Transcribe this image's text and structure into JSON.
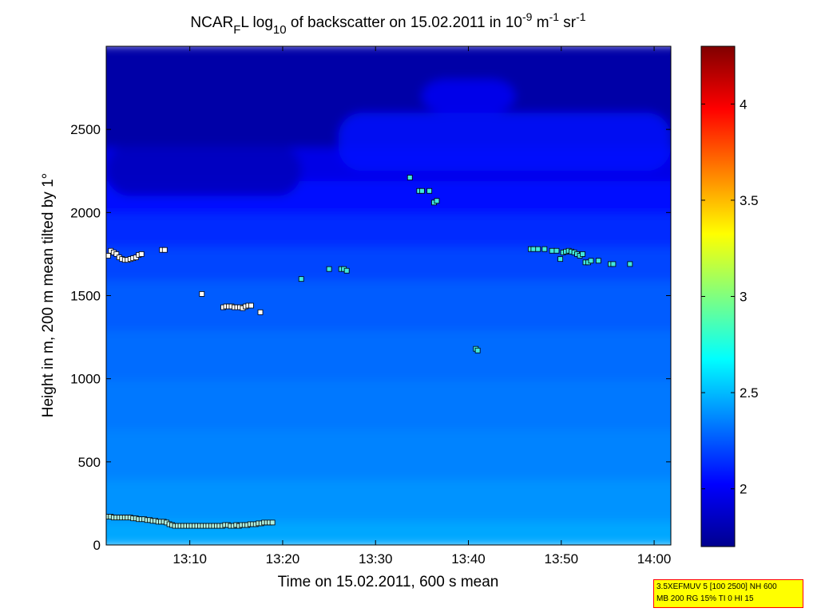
{
  "chart_data": {
    "type": "heatmap",
    "title_parts": {
      "a": "NCAR",
      "a_sub": "F",
      "b": "L log",
      "b_sub": "10",
      "c": " of backscatter on 15.02.2011 in 10",
      "c_sup": "-9",
      "d": " m",
      "d_sup": "-1",
      "e": " sr",
      "e_sup": "-1"
    },
    "xlabel": "Time on 15.02.2011, 600 s mean",
    "ylabel": "Height in m, 200 m mean tilted by 1°",
    "x_ticks": [
      "13:10",
      "13:20",
      "13:30",
      "13:40",
      "13:50",
      "14:00"
    ],
    "x_tick_minutes": [
      10,
      20,
      30,
      40,
      50,
      60
    ],
    "y_ticks": [
      "0",
      "500",
      "1000",
      "1500",
      "2000",
      "2500"
    ],
    "y_tick_values": [
      0,
      500,
      1000,
      1500,
      2000,
      2500
    ],
    "xlim_minutes": [
      1,
      61.8
    ],
    "ylim": [
      0,
      3000
    ],
    "colorbar": {
      "colormap": "jet",
      "clim": [
        1.7,
        4.3
      ],
      "ticks": [
        "2",
        "2.5",
        "3",
        "3.5",
        "4"
      ],
      "tick_values": [
        2,
        2.5,
        3,
        3.5,
        4
      ]
    },
    "heatmap_bands": [
      {
        "h0": 0,
        "h1": 150,
        "value": 2.45
      },
      {
        "h0": 150,
        "h1": 400,
        "value": 2.4
      },
      {
        "h0": 400,
        "h1": 700,
        "value": 2.36
      },
      {
        "h0": 700,
        "h1": 1000,
        "value": 2.33
      },
      {
        "h0": 1000,
        "h1": 1300,
        "value": 2.3
      },
      {
        "h0": 1300,
        "h1": 1600,
        "value": 2.26
      },
      {
        "h0": 1600,
        "h1": 1800,
        "value": 2.2
      },
      {
        "h0": 1800,
        "h1": 2000,
        "value": 2.13
      },
      {
        "h0": 2000,
        "h1": 2200,
        "value": 2.05
      },
      {
        "h0": 2200,
        "h1": 2400,
        "value": 1.96
      },
      {
        "h0": 2400,
        "h1": 3000,
        "value": 1.8
      }
    ],
    "cloud_layers": [
      {
        "t0": 26,
        "t1": 61.8,
        "h0": 2250,
        "h1": 2600,
        "value": 2.05
      },
      {
        "t0": 35,
        "t1": 45,
        "h0": 2600,
        "h1": 2800,
        "value": 2.0
      },
      {
        "t0": 1,
        "t1": 22,
        "h0": 2100,
        "h1": 2400,
        "value": 1.85
      }
    ],
    "series": [
      {
        "points": [
          [
            1.2,
            1740
          ],
          [
            1.5,
            1770
          ],
          [
            1.8,
            1760
          ],
          [
            2.1,
            1750
          ],
          [
            2.4,
            1730
          ],
          [
            2.7,
            1720
          ],
          [
            3.0,
            1715
          ],
          [
            3.3,
            1715
          ],
          [
            3.6,
            1720
          ],
          [
            3.9,
            1725
          ],
          [
            4.2,
            1730
          ],
          [
            4.5,
            1745
          ],
          [
            4.8,
            1750
          ],
          [
            7.0,
            1775
          ],
          [
            7.3,
            1775
          ],
          [
            11.3,
            1510
          ],
          [
            13.6,
            1430
          ],
          [
            13.9,
            1435
          ],
          [
            14.2,
            1435
          ],
          [
            14.5,
            1435
          ],
          [
            14.8,
            1430
          ],
          [
            15.1,
            1430
          ],
          [
            15.4,
            1430
          ],
          [
            15.7,
            1425
          ],
          [
            16.0,
            1435
          ],
          [
            16.3,
            1440
          ],
          [
            16.6,
            1440
          ],
          [
            17.6,
            1400
          ]
        ],
        "color": "#ffffff"
      },
      {
        "points": [
          [
            22.0,
            1600
          ],
          [
            25.0,
            1660
          ],
          [
            26.3,
            1660
          ],
          [
            26.6,
            1660
          ],
          [
            26.9,
            1650
          ],
          [
            33.7,
            2210
          ],
          [
            34.7,
            2130
          ],
          [
            35.0,
            2130
          ],
          [
            35.8,
            2130
          ],
          [
            36.3,
            2060
          ],
          [
            36.6,
            2070
          ],
          [
            40.8,
            1180
          ],
          [
            41.0,
            1170
          ],
          [
            46.7,
            1780
          ],
          [
            47.0,
            1780
          ],
          [
            47.5,
            1780
          ],
          [
            48.2,
            1780
          ],
          [
            49.0,
            1770
          ],
          [
            49.5,
            1770
          ],
          [
            49.9,
            1720
          ],
          [
            50.2,
            1760
          ],
          [
            50.5,
            1765
          ],
          [
            50.8,
            1770
          ],
          [
            51.1,
            1765
          ],
          [
            51.4,
            1760
          ],
          [
            51.7,
            1750
          ],
          [
            52.0,
            1740
          ],
          [
            52.3,
            1750
          ],
          [
            52.6,
            1700
          ],
          [
            52.9,
            1700
          ],
          [
            53.2,
            1710
          ],
          [
            54.0,
            1710
          ],
          [
            55.3,
            1690
          ],
          [
            55.6,
            1690
          ],
          [
            57.4,
            1690
          ]
        ],
        "color": "#40e8e0"
      },
      {
        "points": [
          [
            1.2,
            170
          ],
          [
            1.5,
            170
          ],
          [
            1.8,
            165
          ],
          [
            2.1,
            165
          ],
          [
            2.4,
            165
          ],
          [
            2.7,
            165
          ],
          [
            3.0,
            165
          ],
          [
            3.3,
            165
          ],
          [
            3.6,
            165
          ],
          [
            3.9,
            160
          ],
          [
            4.2,
            160
          ],
          [
            4.5,
            155
          ],
          [
            4.8,
            155
          ],
          [
            5.1,
            155
          ],
          [
            5.4,
            150
          ],
          [
            5.7,
            150
          ],
          [
            6.0,
            145
          ],
          [
            6.3,
            145
          ],
          [
            6.6,
            140
          ],
          [
            6.9,
            140
          ],
          [
            7.2,
            140
          ],
          [
            7.5,
            135
          ],
          [
            7.8,
            125
          ],
          [
            8.1,
            120
          ],
          [
            8.4,
            115
          ],
          [
            8.7,
            115
          ],
          [
            9.0,
            115
          ],
          [
            9.3,
            115
          ],
          [
            9.6,
            115
          ],
          [
            9.9,
            115
          ],
          [
            10.2,
            115
          ],
          [
            10.5,
            115
          ],
          [
            10.8,
            115
          ],
          [
            11.1,
            115
          ],
          [
            11.4,
            115
          ],
          [
            11.7,
            115
          ],
          [
            12.0,
            115
          ],
          [
            12.3,
            115
          ],
          [
            12.6,
            115
          ],
          [
            12.9,
            115
          ],
          [
            13.2,
            115
          ],
          [
            13.5,
            115
          ],
          [
            13.8,
            120
          ],
          [
            14.1,
            120
          ],
          [
            14.4,
            115
          ],
          [
            14.7,
            115
          ],
          [
            15.0,
            120
          ],
          [
            15.3,
            115
          ],
          [
            15.6,
            120
          ],
          [
            15.9,
            120
          ],
          [
            16.2,
            120
          ],
          [
            16.5,
            125
          ],
          [
            16.8,
            125
          ],
          [
            17.1,
            125
          ],
          [
            17.4,
            130
          ],
          [
            17.7,
            130
          ],
          [
            18.0,
            135
          ],
          [
            18.3,
            135
          ],
          [
            18.6,
            135
          ],
          [
            18.9,
            135
          ]
        ],
        "color": "#b0f0e0"
      }
    ]
  },
  "info_box": {
    "line1": "3.5XEFMUV 5 [100 2500] NH 600",
    "line2": "MB 200 RG 15% TI 0 HI 15"
  }
}
